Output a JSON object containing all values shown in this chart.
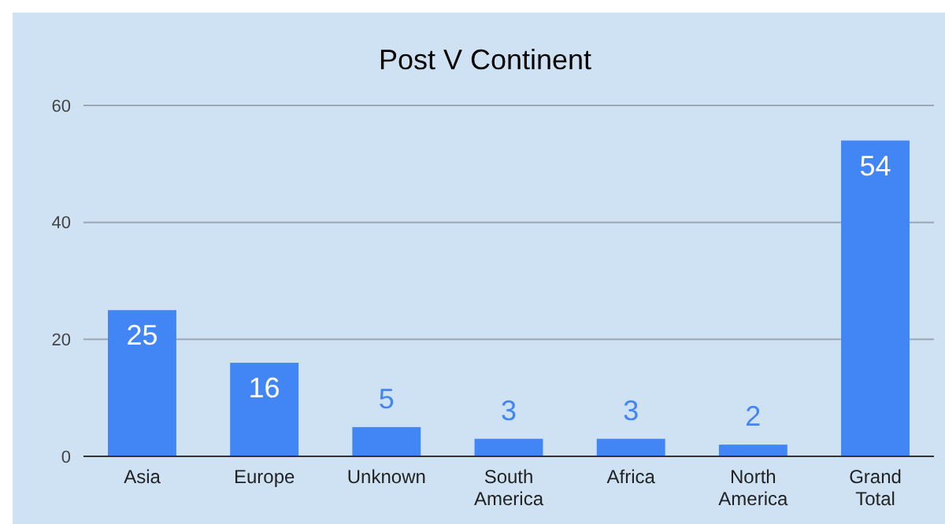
{
  "chart_data": {
    "type": "bar",
    "title": "Post V Continent",
    "categories": [
      "Asia",
      "Europe",
      "Unknown",
      "South America",
      "Africa",
      "North America",
      "Grand Total"
    ],
    "values": [
      25,
      16,
      5,
      3,
      3,
      2,
      54
    ],
    "color": "#4285f4",
    "ylim": [
      0,
      60
    ],
    "yticks": [
      0,
      20,
      40,
      60
    ],
    "grid": "y",
    "data_labels": true
  }
}
